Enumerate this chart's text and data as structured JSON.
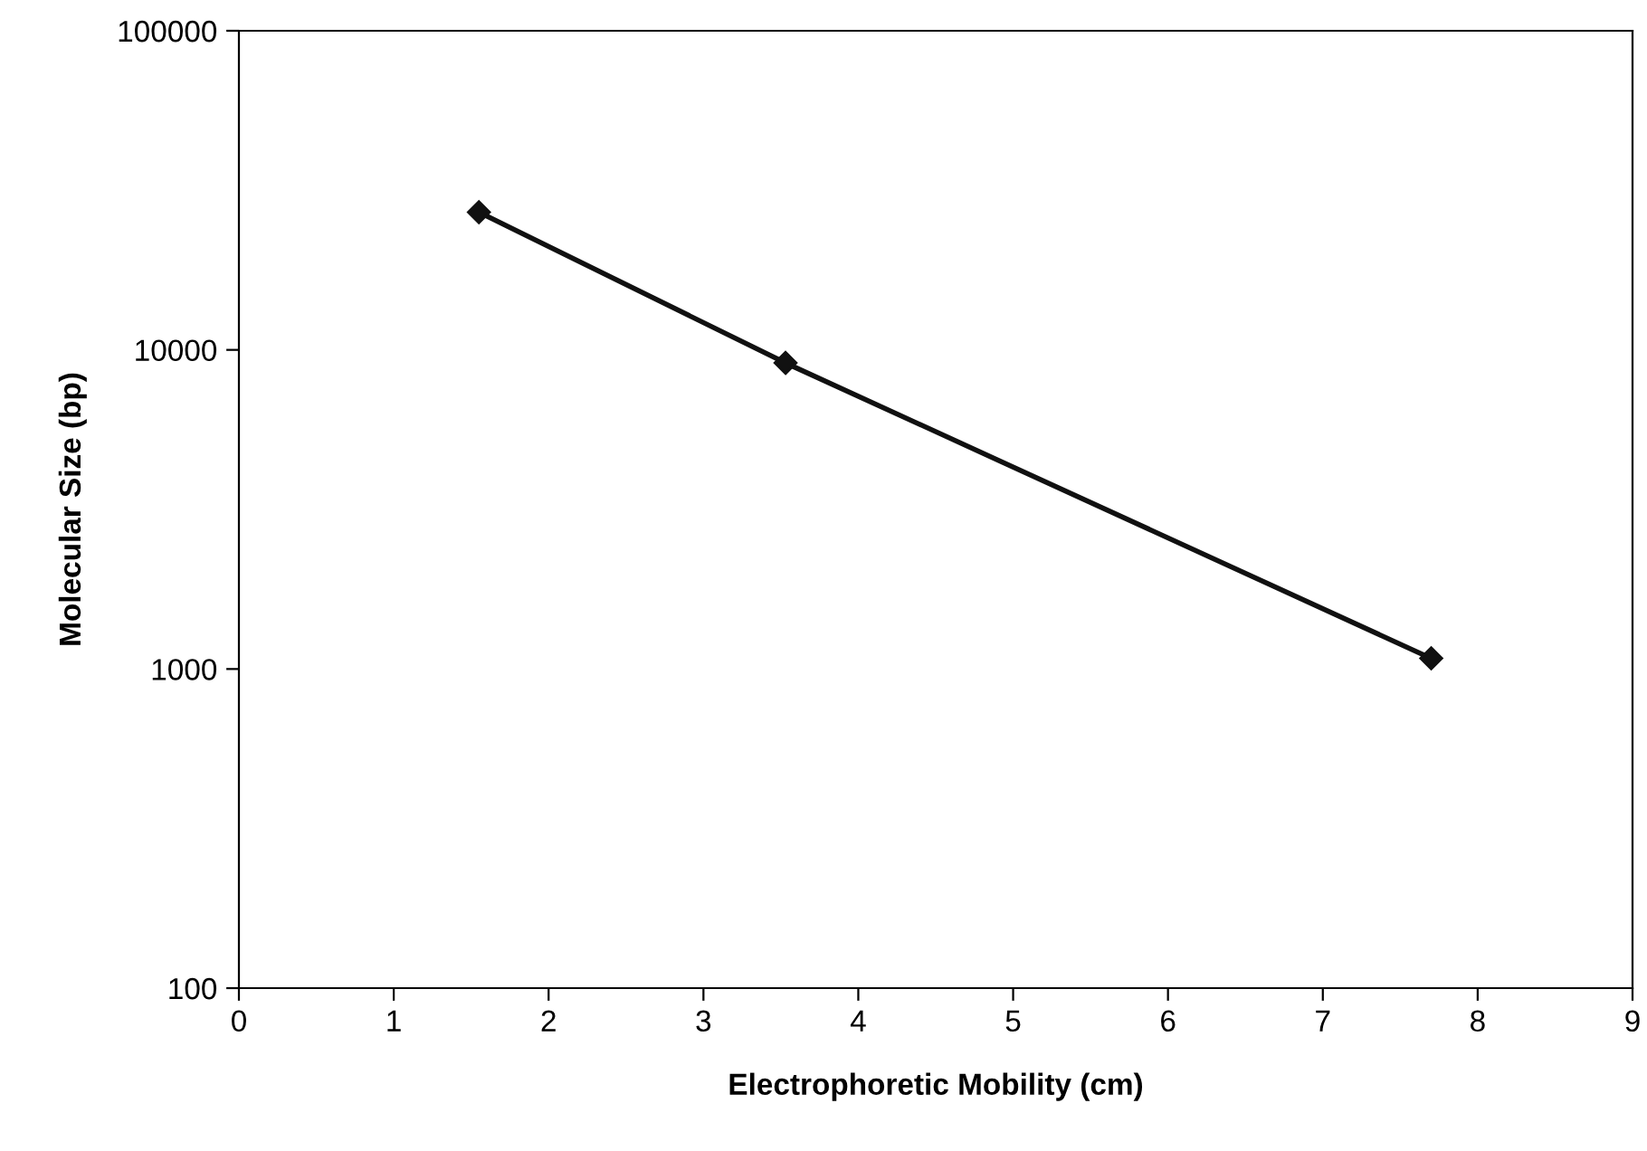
{
  "chart_data": {
    "type": "line",
    "xlabel": "Electrophoretic Mobility (cm)",
    "ylabel": "Molecular Size (bp)",
    "x": [
      1.55,
      3.53,
      7.7
    ],
    "series": [
      {
        "color": "#111111",
        "values": [
          27000,
          9100,
          1080
        ]
      }
    ],
    "log": "y",
    "xlim": [
      0,
      9
    ],
    "xticks": [
      0,
      1,
      2,
      3,
      4,
      5,
      6,
      7,
      8,
      9
    ],
    "ylim": [
      100,
      100000
    ],
    "yticks": [
      100,
      1000,
      10000,
      100000
    ],
    "grid": false,
    "legend": false,
    "marker": "diamond",
    "line_style": "solid"
  }
}
